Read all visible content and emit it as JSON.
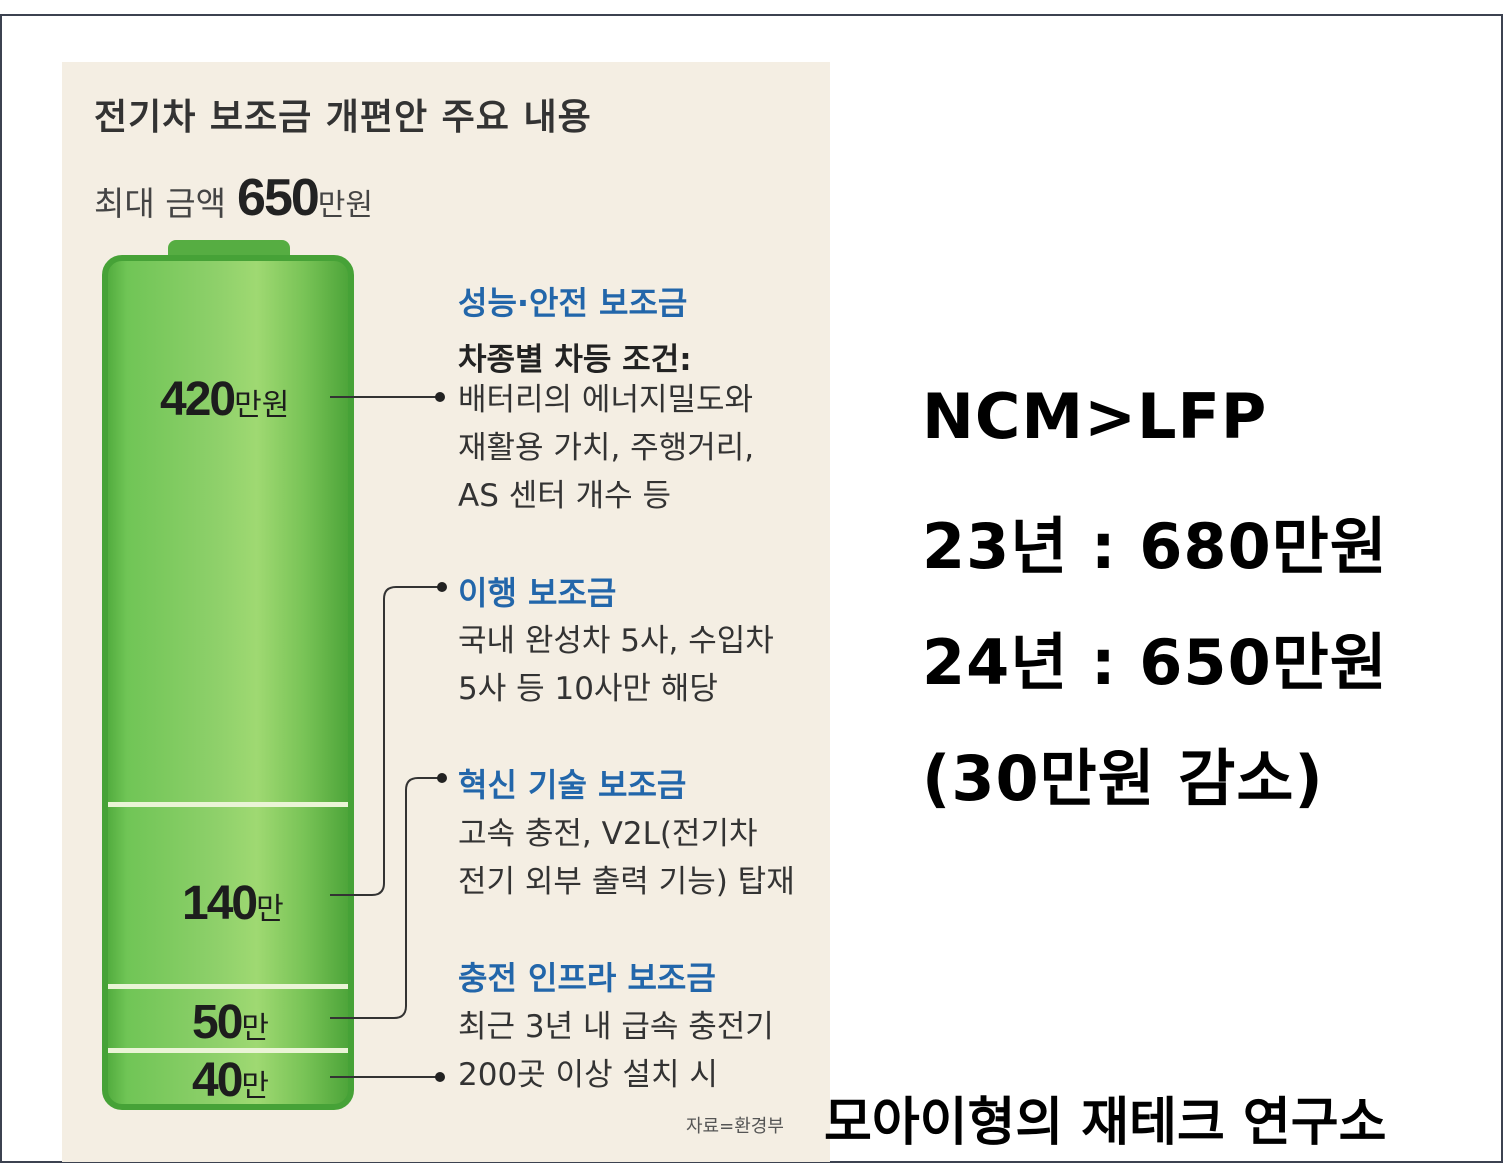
{
  "infographic": {
    "title": "전기차 보조금 개편안 주요 내용",
    "max_amount_label": "최대 금액",
    "max_amount_value": "650",
    "max_amount_unit": "만원",
    "source": "자료=환경부",
    "segments": [
      {
        "value": "420",
        "unit": "만원"
      },
      {
        "value": "140",
        "unit": "만"
      },
      {
        "value": "50",
        "unit": "만"
      },
      {
        "value": "40",
        "unit": "만"
      }
    ],
    "sections": [
      {
        "title": "성능·안전 보조금",
        "subtitle": "차종별 차등 조건:",
        "lines": [
          "배터리의 에너지밀도와",
          "재활용 가치, 주행거리,",
          "AS 센터 개수 등"
        ]
      },
      {
        "title": "이행 보조금",
        "lines": [
          "국내 완성차 5사, 수입차",
          "5사 등 10사만 해당"
        ]
      },
      {
        "title": "혁신 기술 보조금",
        "lines": [
          "고속 충전, V2L(전기차",
          "전기 외부 출력 기능) 탑재"
        ]
      },
      {
        "title": "충전 인프라 보조금",
        "lines": [
          "최근 3년 내 급속 충전기",
          "200곳 이상 설치 시"
        ]
      }
    ],
    "colors": {
      "battery": "#7cc45a",
      "section_title": "#2266aa",
      "panel_bg": "#f4eee3"
    }
  },
  "overlay": {
    "line1": "NCM>LFP",
    "line2": "23년 : 680만원",
    "line3": "24년 : 650만원",
    "line4": "(30만원 감소)",
    "brand": "모아이형의 재테크 연구소"
  }
}
